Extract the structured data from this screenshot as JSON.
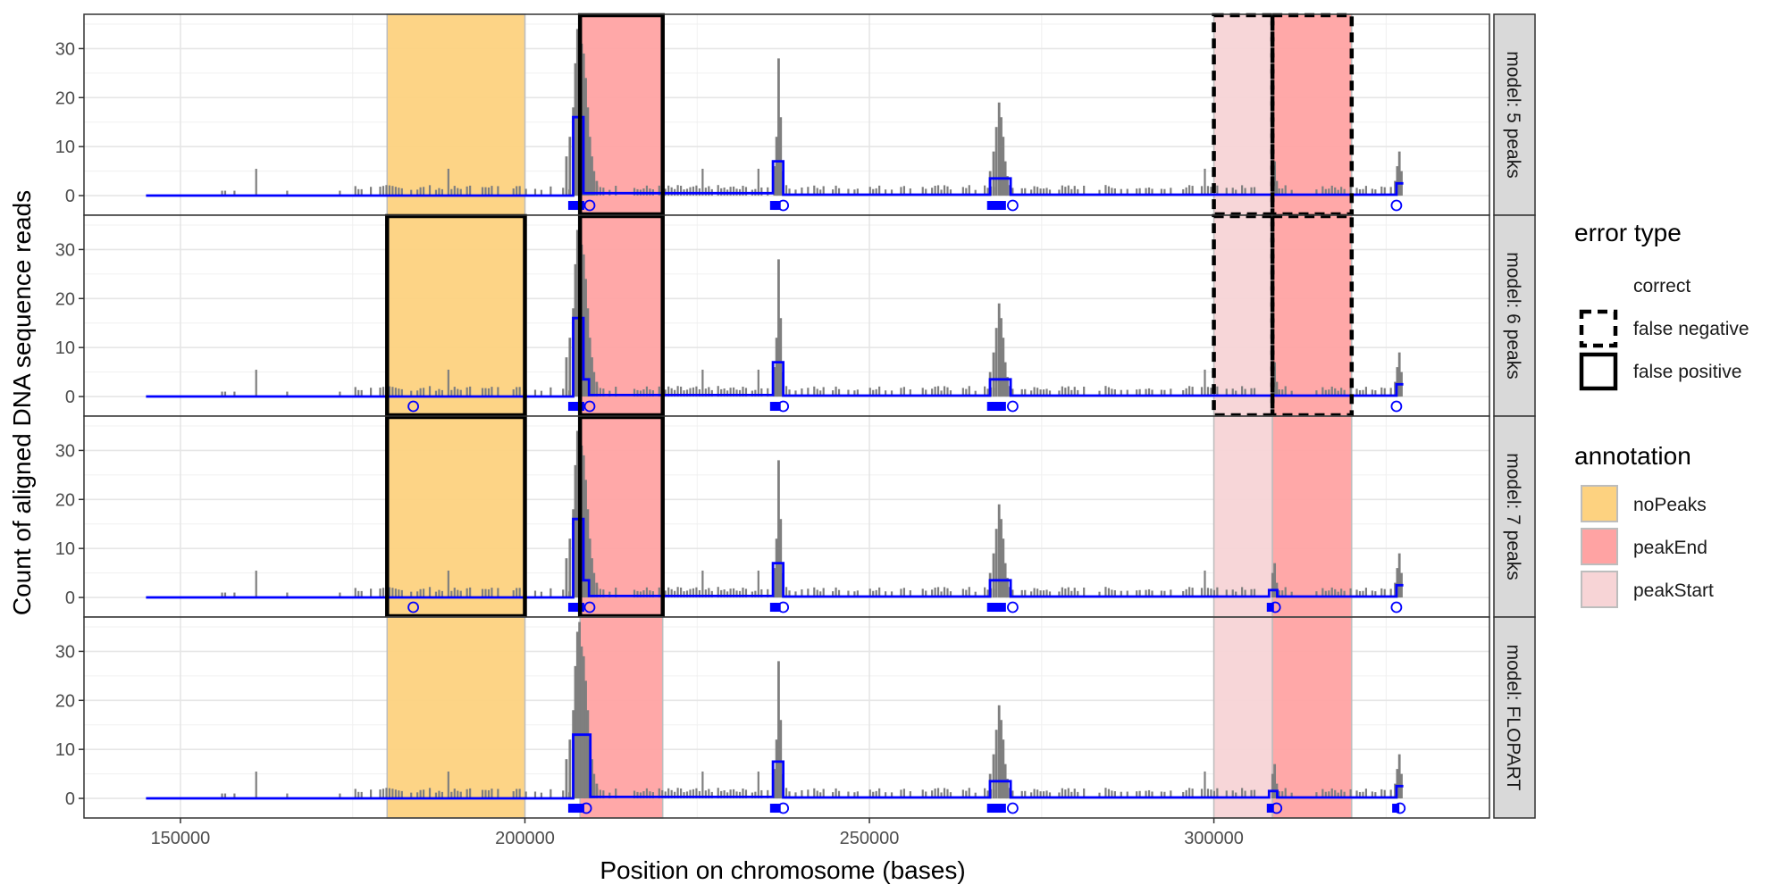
{
  "chart_data": {
    "type": "line",
    "xlabel": "Position on chromosome (bases)",
    "ylabel": "Count of aligned DNA sequence reads",
    "xlim": [
      136000,
      340000
    ],
    "ylim": [
      -4,
      37
    ],
    "x_ticks": [
      150000,
      200000,
      250000,
      300000
    ],
    "x_tick_labels": [
      "150000",
      "200000",
      "250000",
      "300000"
    ],
    "y_ticks": [
      0,
      10,
      20,
      30
    ],
    "y_tick_labels": [
      "0",
      "10",
      "20",
      "30"
    ],
    "grid": true,
    "facets": [
      "model: 5 peaks",
      "model: 6 peaks",
      "model: 7 peaks",
      "model: FLOPART"
    ],
    "colors": {
      "noPeaks": "#fdd280",
      "peakEnd": "#ffa3a3",
      "peakStart": "#f7d4d6",
      "coverage": "#7f7f7f",
      "segments": "#0000ff"
    },
    "annotation_legend": {
      "title": "annotation",
      "items": [
        {
          "label": "noPeaks",
          "color": "#fdd280"
        },
        {
          "label": "peakEnd",
          "color": "#ffa3a3"
        },
        {
          "label": "peakStart",
          "color": "#f7d4d6"
        }
      ]
    },
    "error_legend": {
      "title": "error type",
      "items": [
        {
          "label": "correct",
          "style": "none"
        },
        {
          "label": "false negative",
          "style": "dashed"
        },
        {
          "label": "false positive",
          "style": "solid"
        }
      ]
    },
    "annotations": [
      {
        "start": 180000,
        "end": 200000,
        "type": "noPeaks"
      },
      {
        "start": 208000,
        "end": 220000,
        "type": "peakEnd"
      },
      {
        "start": 300000,
        "end": 308500,
        "type": "peakStart"
      },
      {
        "start": 308500,
        "end": 320000,
        "type": "peakEnd"
      }
    ],
    "errors": [
      {
        "facet": 0,
        "start": 208000,
        "end": 220000,
        "type": "false positive"
      },
      {
        "facet": 0,
        "start": 300000,
        "end": 308500,
        "type": "false negative"
      },
      {
        "facet": 0,
        "start": 308500,
        "end": 320000,
        "type": "false negative"
      },
      {
        "facet": 1,
        "start": 180000,
        "end": 200000,
        "type": "false positive"
      },
      {
        "facet": 1,
        "start": 208000,
        "end": 220000,
        "type": "false positive"
      },
      {
        "facet": 1,
        "start": 300000,
        "end": 308500,
        "type": "false negative"
      },
      {
        "facet": 1,
        "start": 308500,
        "end": 320000,
        "type": "false negative"
      },
      {
        "facet": 2,
        "start": 180000,
        "end": 200000,
        "type": "false positive"
      },
      {
        "facet": 2,
        "start": 208000,
        "end": 220000,
        "type": "false positive"
      }
    ],
    "coverage_peaks": [
      {
        "x": 206000,
        "y": 8
      },
      {
        "x": 206500,
        "y": 12
      },
      {
        "x": 207000,
        "y": 18
      },
      {
        "x": 207300,
        "y": 27
      },
      {
        "x": 207600,
        "y": 34
      },
      {
        "x": 207900,
        "y": 36
      },
      {
        "x": 208200,
        "y": 31
      },
      {
        "x": 208500,
        "y": 29
      },
      {
        "x": 208800,
        "y": 24
      },
      {
        "x": 209100,
        "y": 18
      },
      {
        "x": 209400,
        "y": 12
      },
      {
        "x": 209700,
        "y": 8
      },
      {
        "x": 210000,
        "y": 5
      },
      {
        "x": 210400,
        "y": 3
      },
      {
        "x": 236200,
        "y": 6
      },
      {
        "x": 236500,
        "y": 12
      },
      {
        "x": 236800,
        "y": 28
      },
      {
        "x": 237100,
        "y": 16
      },
      {
        "x": 237400,
        "y": 5
      },
      {
        "x": 267500,
        "y": 5
      },
      {
        "x": 268000,
        "y": 9
      },
      {
        "x": 268400,
        "y": 14
      },
      {
        "x": 268800,
        "y": 19
      },
      {
        "x": 269100,
        "y": 16
      },
      {
        "x": 269400,
        "y": 12
      },
      {
        "x": 269700,
        "y": 7
      },
      {
        "x": 270000,
        "y": 4
      },
      {
        "x": 308500,
        "y": 5
      },
      {
        "x": 308800,
        "y": 7
      },
      {
        "x": 309100,
        "y": 3
      },
      {
        "x": 326300,
        "y": 3
      },
      {
        "x": 326600,
        "y": 6
      },
      {
        "x": 326900,
        "y": 9
      },
      {
        "x": 327200,
        "y": 5
      }
    ],
    "segments": [
      {
        "name": "model: 5 peaks",
        "x": [
          145000,
          207000,
          207000,
          208500,
          208500,
          236000,
          236000,
          237500,
          237500,
          267500,
          267500,
          270500,
          270500,
          326500,
          326500,
          327500
        ],
        "y": [
          0,
          0,
          16,
          16,
          0.5,
          0.5,
          7,
          7,
          0.2,
          0.2,
          3.5,
          3.5,
          0.2,
          0.2,
          2.5,
          2.5
        ]
      },
      {
        "name": "model: 6 peaks",
        "x": [
          145000,
          207000,
          207000,
          208500,
          208500,
          209300,
          209300,
          236000,
          236000,
          237500,
          237500,
          267500,
          267500,
          270500,
          270500,
          326500,
          326500,
          327500
        ],
        "y": [
          0,
          0,
          16,
          16,
          3.5,
          3.5,
          0.3,
          0.3,
          7,
          7,
          0.2,
          0.2,
          3.5,
          3.5,
          0.2,
          0.2,
          2.5,
          2.5
        ]
      },
      {
        "name": "model: 7 peaks",
        "x": [
          145000,
          207000,
          207000,
          208500,
          208500,
          209300,
          209300,
          236000,
          236000,
          237500,
          237500,
          267500,
          267500,
          270500,
          270500,
          308000,
          308000,
          309200,
          309200,
          326500,
          326500,
          327500
        ],
        "y": [
          0,
          0,
          16,
          16,
          3.5,
          3.5,
          0.3,
          0.3,
          7,
          7,
          0.2,
          0.2,
          3.5,
          3.5,
          0.2,
          0.2,
          1.5,
          1.5,
          0.2,
          0.2,
          2.5,
          2.5
        ]
      },
      {
        "name": "model: FLOPART",
        "x": [
          145000,
          207000,
          207000,
          209500,
          209500,
          236000,
          236000,
          237500,
          237500,
          267500,
          267500,
          270500,
          270500,
          308000,
          308000,
          309200,
          309200,
          326500,
          326500,
          327500
        ],
        "y": [
          0,
          0,
          13,
          13,
          0.3,
          0.3,
          7.5,
          7.5,
          0.2,
          0.2,
          3.5,
          3.5,
          0.2,
          0.2,
          1.5,
          1.5,
          0.2,
          0.2,
          2.5,
          2.5
        ]
      }
    ],
    "changepoint_markers": [
      {
        "facet": 0,
        "squares": [
          206800,
          207300,
          207700,
          208100,
          236100,
          236600,
          267600,
          268200,
          268700,
          269300
        ],
        "circles": [
          209400,
          237500,
          270800,
          326500
        ]
      },
      {
        "facet": 1,
        "squares": [
          206800,
          207300,
          207700,
          208100,
          236100,
          236600,
          267600,
          268200,
          268700,
          269300
        ],
        "circles": [
          183800,
          209400,
          237500,
          270800,
          326500
        ]
      },
      {
        "facet": 2,
        "squares": [
          206800,
          207300,
          207700,
          208100,
          236100,
          236600,
          267600,
          268200,
          268700,
          269300,
          308200
        ],
        "circles": [
          183800,
          209400,
          237500,
          270800,
          308900,
          326500
        ]
      },
      {
        "facet": 3,
        "squares": [
          206800,
          207300,
          207700,
          208100,
          236100,
          236600,
          267600,
          268200,
          268700,
          269300,
          308200,
          326400
        ],
        "circles": [
          208900,
          237500,
          270800,
          309100,
          327000
        ]
      }
    ]
  }
}
